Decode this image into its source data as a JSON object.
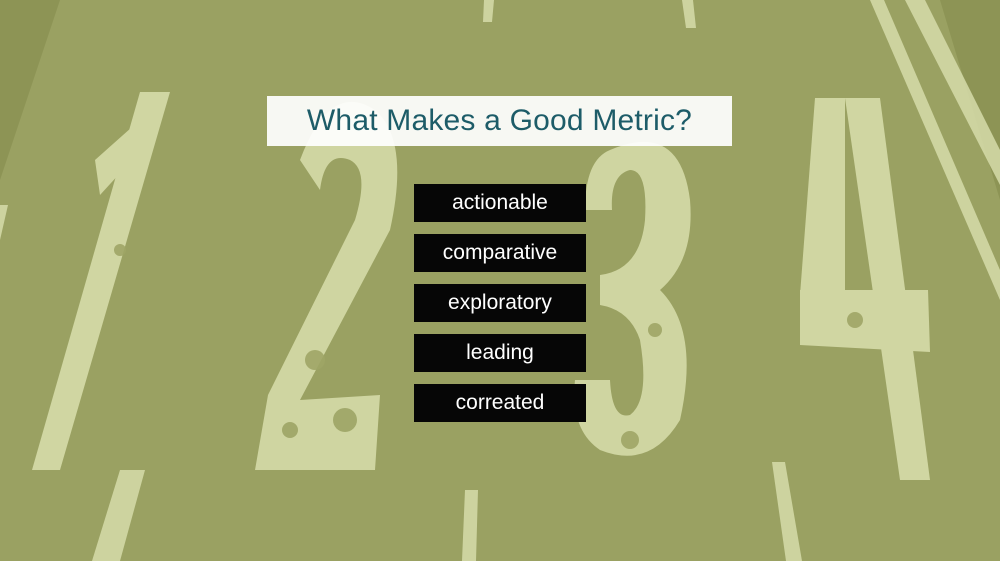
{
  "slide": {
    "title": "What Makes a Good Metric?",
    "items": [
      {
        "label": "actionable"
      },
      {
        "label": "comparative"
      },
      {
        "label": "exploratory"
      },
      {
        "label": "leading"
      },
      {
        "label": "correated"
      }
    ]
  },
  "colors": {
    "background_tint": "#9ea566",
    "road_paint": "#d6dcaa",
    "title_text": "#1d5c68",
    "title_box": "#ffffff",
    "item_box": "#060606",
    "item_text": "#ffffff"
  },
  "background_image": {
    "icon": "road-lane-numbers-image",
    "painted_numerals": [
      "1",
      "2",
      "3",
      "4"
    ]
  }
}
